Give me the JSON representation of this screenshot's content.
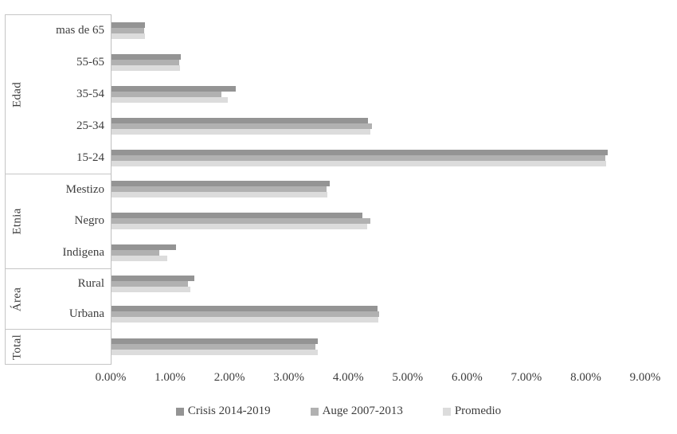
{
  "chart_data": {
    "type": "bar",
    "orientation": "horizontal",
    "title": "",
    "x_axis": {
      "min": 0,
      "max": 9,
      "tick_step": 1,
      "tick_labels": [
        "0.00%",
        "1.00%",
        "2.00%",
        "3.00%",
        "4.00%",
        "5.00%",
        "6.00%",
        "7.00%",
        "8.00%",
        "9.00%"
      ],
      "grid": false
    },
    "series": [
      {
        "name": "Crisis 2014-2019",
        "color": "#949494"
      },
      {
        "name": "Auge 2007-2013",
        "color": "#b1b1b1"
      },
      {
        "name": "Promedio",
        "color": "#dcdcdc"
      }
    ],
    "groups": [
      {
        "label": "Edad",
        "categories": [
          {
            "label": "mas de 65",
            "values": [
              0.57,
              0.55,
              0.56
            ]
          },
          {
            "label": "55-65",
            "values": [
              1.17,
              1.14,
              1.16
            ]
          },
          {
            "label": "35-54",
            "values": [
              2.09,
              1.85,
              1.96
            ]
          },
          {
            "label": "25-34",
            "values": [
              4.32,
              4.38,
              4.36
            ]
          },
          {
            "label": "15-24",
            "values": [
              8.35,
              8.31,
              8.33
            ]
          }
        ]
      },
      {
        "label": "Etnia",
        "categories": [
          {
            "label": "Mestizo",
            "values": [
              3.67,
              3.62,
              3.64
            ]
          },
          {
            "label": "Negro",
            "values": [
              4.23,
              4.36,
              4.3
            ]
          },
          {
            "label": "Indigena",
            "values": [
              1.09,
              0.8,
              0.94
            ]
          }
        ]
      },
      {
        "label": "Área",
        "categories": [
          {
            "label": "Rural",
            "values": [
              1.39,
              1.29,
              1.33
            ]
          },
          {
            "label": "Urbana",
            "values": [
              4.48,
              4.5,
              4.49
            ]
          }
        ]
      },
      {
        "label": "Total",
        "categories": [
          {
            "label": "",
            "values": [
              3.48,
              3.44,
              3.47
            ]
          }
        ]
      }
    ],
    "legend": {
      "position": "bottom",
      "items": [
        "Crisis 2014-2019",
        "Auge 2007-2013",
        "Promedio"
      ]
    }
  }
}
